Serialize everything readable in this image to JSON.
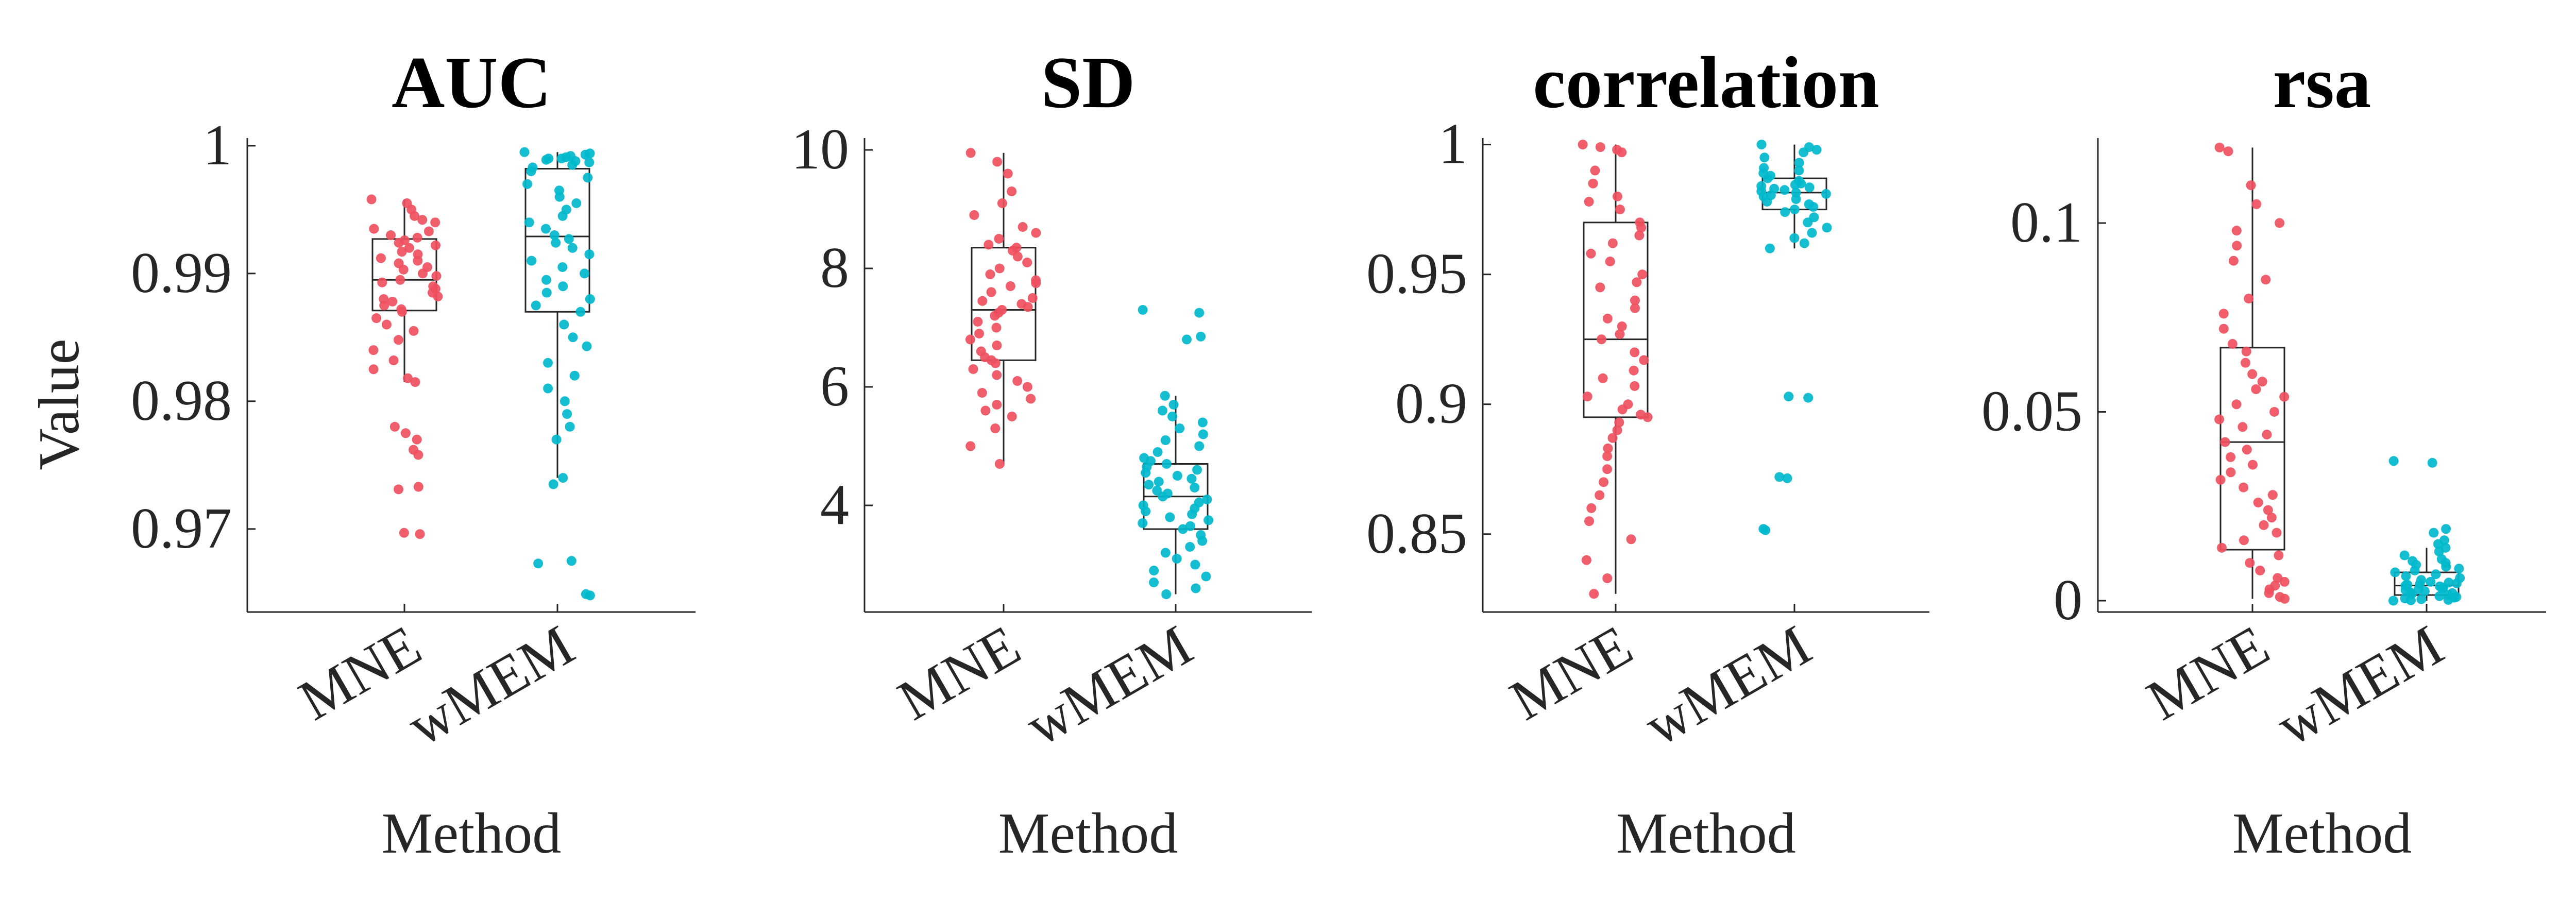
{
  "figure": {
    "ylabel": "Value",
    "xlabel": "Method",
    "colors": {
      "MNE": "#ef4f5e",
      "wMEM": "#00b8cc"
    }
  },
  "chart_data": [
    {
      "type": "scatter",
      "title": "AUC",
      "xlabel": "Method",
      "ylabel": "Value",
      "categories": [
        "MNE",
        "wMEM"
      ],
      "ylim": [
        0.9635,
        1.0006
      ],
      "yticks": [
        0.97,
        0.98,
        0.99,
        1
      ],
      "ytick_labels": [
        "0.97",
        "0.98",
        "0.99",
        "1"
      ],
      "series": [
        {
          "category": "MNE",
          "box": {
            "q1": 0.9871,
            "median": 0.9895,
            "q3": 0.9927,
            "whisker_low": 0.9815,
            "whisker_high": 0.9958
          },
          "values": [
            0.9958,
            0.9955,
            0.995,
            0.9945,
            0.9942,
            0.994,
            0.9935,
            0.9933,
            0.993,
            0.9928,
            0.9926,
            0.9924,
            0.9922,
            0.992,
            0.9917,
            0.9915,
            0.9912,
            0.991,
            0.9908,
            0.9905,
            0.9903,
            0.99,
            0.9898,
            0.9895,
            0.9893,
            0.989,
            0.9888,
            0.9885,
            0.9882,
            0.988,
            0.9878,
            0.9875,
            0.9872,
            0.987,
            0.9865,
            0.986,
            0.9855,
            0.9848,
            0.984,
            0.9832,
            0.9825,
            0.9818,
            0.9815,
            0.978,
            0.9775,
            0.977,
            0.9762,
            0.9758,
            0.9733,
            0.9731,
            0.9697,
            0.9696
          ]
        },
        {
          "category": "wMEM",
          "box": {
            "q1": 0.987,
            "median": 0.9929,
            "q3": 0.9982,
            "whisker_low": 0.974,
            "whisker_high": 0.9995
          },
          "values": [
            0.9995,
            0.9994,
            0.9993,
            0.9992,
            0.9991,
            0.999,
            0.999,
            0.9989,
            0.9988,
            0.9987,
            0.9985,
            0.9983,
            0.998,
            0.9975,
            0.997,
            0.9965,
            0.996,
            0.9955,
            0.995,
            0.9945,
            0.994,
            0.9935,
            0.993,
            0.9927,
            0.9924,
            0.992,
            0.9915,
            0.991,
            0.9905,
            0.99,
            0.9895,
            0.989,
            0.9885,
            0.988,
            0.9875,
            0.987,
            0.986,
            0.985,
            0.9843,
            0.983,
            0.982,
            0.981,
            0.98,
            0.979,
            0.978,
            0.977,
            0.974,
            0.9735,
            0.9675,
            0.9673,
            0.9649,
            0.9648
          ]
        }
      ]
    },
    {
      "type": "scatter",
      "title": "SD",
      "xlabel": "Method",
      "ylabel": "",
      "categories": [
        "MNE",
        "wMEM"
      ],
      "ylim": [
        2.2,
        10.2
      ],
      "yticks": [
        4,
        6,
        8,
        10
      ],
      "ytick_labels": [
        "4",
        "6",
        "8",
        "10"
      ],
      "series": [
        {
          "category": "MNE",
          "box": {
            "q1": 6.45,
            "median": 7.3,
            "q3": 8.35,
            "whisker_low": 4.7,
            "whisker_high": 9.95
          },
          "values": [
            9.95,
            9.8,
            9.6,
            9.3,
            9.1,
            8.9,
            8.7,
            8.6,
            8.5,
            8.4,
            8.35,
            8.3,
            8.2,
            8.1,
            8.0,
            7.9,
            7.8,
            7.75,
            7.7,
            7.6,
            7.5,
            7.45,
            7.4,
            7.35,
            7.3,
            7.25,
            7.2,
            7.1,
            7.0,
            6.9,
            6.8,
            6.7,
            6.6,
            6.5,
            6.45,
            6.4,
            6.3,
            6.2,
            6.1,
            6.0,
            5.9,
            5.8,
            5.7,
            5.6,
            5.5,
            5.3,
            5.0,
            4.7
          ]
        },
        {
          "category": "wMEM",
          "box": {
            "q1": 3.6,
            "median": 4.15,
            "q3": 4.7,
            "whisker_low": 2.5,
            "whisker_high": 5.85
          },
          "values": [
            7.3,
            7.25,
            6.85,
            6.8,
            5.85,
            5.7,
            5.6,
            5.5,
            5.4,
            5.3,
            5.2,
            5.1,
            5.0,
            4.9,
            4.8,
            4.75,
            4.7,
            4.65,
            4.6,
            4.55,
            4.5,
            4.45,
            4.4,
            4.35,
            4.3,
            4.25,
            4.2,
            4.15,
            4.1,
            4.05,
            4.0,
            3.95,
            3.9,
            3.85,
            3.8,
            3.75,
            3.7,
            3.65,
            3.6,
            3.5,
            3.4,
            3.3,
            3.2,
            3.1,
            3.0,
            2.9,
            2.8,
            2.7,
            2.6,
            2.5
          ]
        }
      ]
    },
    {
      "type": "scatter",
      "title": "correlation",
      "xlabel": "Method",
      "ylabel": "",
      "categories": [
        "MNE",
        "wMEM"
      ],
      "ylim": [
        0.82,
        1.0025
      ],
      "yticks": [
        0.85,
        0.9,
        0.95,
        1
      ],
      "ytick_labels": [
        "0.85",
        "0.9",
        "0.95",
        "1"
      ],
      "series": [
        {
          "category": "MNE",
          "box": {
            "q1": 0.895,
            "median": 0.925,
            "q3": 0.97,
            "whisker_low": 0.827,
            "whisker_high": 1.0
          },
          "values": [
            1.0,
            0.999,
            0.998,
            0.997,
            0.99,
            0.985,
            0.98,
            0.978,
            0.975,
            0.97,
            0.968,
            0.965,
            0.962,
            0.958,
            0.955,
            0.95,
            0.947,
            0.945,
            0.94,
            0.937,
            0.933,
            0.93,
            0.927,
            0.925,
            0.92,
            0.917,
            0.913,
            0.91,
            0.907,
            0.903,
            0.9,
            0.898,
            0.896,
            0.895,
            0.893,
            0.89,
            0.887,
            0.883,
            0.88,
            0.875,
            0.87,
            0.865,
            0.86,
            0.855,
            0.848,
            0.84,
            0.833,
            0.827
          ]
        },
        {
          "category": "wMEM",
          "box": {
            "q1": 0.975,
            "median": 0.9815,
            "q3": 0.987,
            "whisker_low": 0.96,
            "whisker_high": 1.0
          },
          "values": [
            1.0,
            0.999,
            0.998,
            0.997,
            0.995,
            0.993,
            0.991,
            0.99,
            0.989,
            0.988,
            0.987,
            0.986,
            0.985,
            0.9845,
            0.984,
            0.9835,
            0.983,
            0.9825,
            0.982,
            0.9815,
            0.981,
            0.9805,
            0.98,
            0.979,
            0.978,
            0.977,
            0.976,
            0.975,
            0.974,
            0.972,
            0.97,
            0.968,
            0.966,
            0.964,
            0.962,
            0.96,
            0.903,
            0.9025,
            0.872,
            0.8715,
            0.852,
            0.8515
          ]
        }
      ]
    },
    {
      "type": "scatter",
      "title": "rsa",
      "xlabel": "Method",
      "ylabel": "",
      "categories": [
        "MNE",
        "wMEM"
      ],
      "ylim": [
        -0.003,
        0.1225
      ],
      "yticks": [
        0,
        0.05,
        0.1
      ],
      "ytick_labels": [
        "0",
        "0.05",
        "0.1"
      ],
      "series": [
        {
          "category": "MNE",
          "box": {
            "q1": 0.0135,
            "median": 0.042,
            "q3": 0.067,
            "whisker_low": 0.0005,
            "whisker_high": 0.12
          },
          "values": [
            0.12,
            0.119,
            0.11,
            0.105,
            0.1,
            0.098,
            0.094,
            0.09,
            0.085,
            0.08,
            0.076,
            0.072,
            0.068,
            0.066,
            0.063,
            0.06,
            0.058,
            0.056,
            0.054,
            0.052,
            0.05,
            0.048,
            0.046,
            0.044,
            0.042,
            0.04,
            0.038,
            0.036,
            0.034,
            0.032,
            0.03,
            0.028,
            0.026,
            0.024,
            0.022,
            0.02,
            0.018,
            0.016,
            0.014,
            0.012,
            0.01,
            0.008,
            0.006,
            0.005,
            0.004,
            0.003,
            0.002,
            0.001,
            0.0005
          ]
        },
        {
          "category": "wMEM",
          "box": {
            "q1": 0.0015,
            "median": 0.004,
            "q3": 0.0075,
            "whisker_low": 0.0,
            "whisker_high": 0.014
          },
          "values": [
            0.037,
            0.0365,
            0.019,
            0.018,
            0.016,
            0.015,
            0.014,
            0.013,
            0.012,
            0.011,
            0.0105,
            0.01,
            0.0095,
            0.009,
            0.0085,
            0.008,
            0.0075,
            0.007,
            0.0065,
            0.006,
            0.0055,
            0.005,
            0.0048,
            0.0046,
            0.0044,
            0.0042,
            0.004,
            0.0038,
            0.0035,
            0.0032,
            0.003,
            0.0028,
            0.0025,
            0.0022,
            0.002,
            0.0018,
            0.0015,
            0.0012,
            0.001,
            0.0008,
            0.0006,
            0.0004,
            0.0002,
            0.0001,
            0.0
          ]
        }
      ]
    }
  ]
}
